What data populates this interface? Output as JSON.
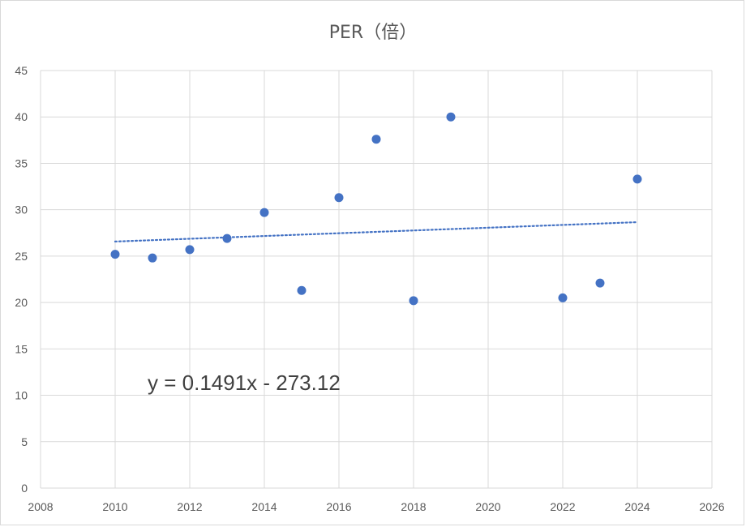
{
  "chart_data": {
    "type": "scatter",
    "title": "PER（倍）",
    "xlabel": "",
    "ylabel": "",
    "xlim": [
      2008,
      2026
    ],
    "ylim": [
      0,
      45
    ],
    "xticks": [
      2008,
      2010,
      2012,
      2014,
      2016,
      2018,
      2020,
      2022,
      2024,
      2026
    ],
    "yticks": [
      0,
      5,
      10,
      15,
      20,
      25,
      30,
      35,
      40,
      45
    ],
    "grid": true,
    "legend": "none",
    "series": [
      {
        "color": "#4472c4",
        "points": [
          {
            "x": 2010,
            "y": 25.2
          },
          {
            "x": 2011,
            "y": 24.8
          },
          {
            "x": 2012,
            "y": 25.7
          },
          {
            "x": 2013,
            "y": 26.9
          },
          {
            "x": 2014,
            "y": 29.7
          },
          {
            "x": 2015,
            "y": 21.3
          },
          {
            "x": 2016,
            "y": 31.3
          },
          {
            "x": 2017,
            "y": 37.6
          },
          {
            "x": 2018,
            "y": 20.2
          },
          {
            "x": 2019,
            "y": 40.0
          },
          {
            "x": 2022,
            "y": 20.5
          },
          {
            "x": 2023,
            "y": 22.1
          },
          {
            "x": 2024,
            "y": 33.3
          }
        ]
      }
    ],
    "trendline": {
      "type": "linear",
      "slope": 0.1491,
      "intercept": -273.12,
      "x_range": [
        2010,
        2024
      ],
      "style": "dotted",
      "color": "#4472c4",
      "equation_label": "y = 0.1491x - 273.12"
    }
  }
}
